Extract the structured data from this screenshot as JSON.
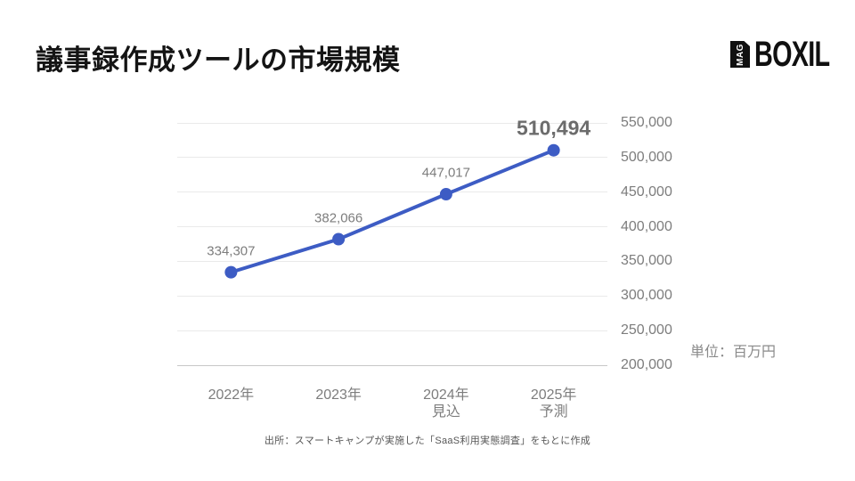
{
  "header": {
    "title": "議事録作成ツールの市場規模",
    "logo": {
      "mag": "MAG",
      "brand": "BOXIL"
    }
  },
  "unit_label": "単位：百万円",
  "source": "出所：スマートキャンプが実施した「SaaS利用実態調査」をもとに作成",
  "colors": {
    "line": "#3d5cc4",
    "grid": "#eaeaea",
    "baseline": "#c7c7c7",
    "label_gray": "#7d7d7d"
  },
  "chart_data": {
    "type": "line",
    "title": "議事録作成ツールの市場規模",
    "unit": "百万円",
    "categories": [
      [
        "2022年"
      ],
      [
        "2023年"
      ],
      [
        "2024年",
        "見込"
      ],
      [
        "2025年",
        "予測"
      ]
    ],
    "values": [
      334307,
      382066,
      447017,
      510494
    ],
    "value_labels": [
      "334,307",
      "382,066",
      "447,017",
      "510,494"
    ],
    "yticks": [
      550000,
      500000,
      450000,
      400000,
      350000,
      300000,
      250000,
      200000
    ],
    "ytick_labels": [
      "550,000",
      "500,000",
      "450,000",
      "400,000",
      "350,000",
      "300,000",
      "250,000",
      "200,000"
    ],
    "ylim": [
      200000,
      550000
    ],
    "grid": true,
    "legend": "none",
    "yaxis_side": "right",
    "emphasize_last_label": true,
    "line_color": "#3d5cc4",
    "marker_radius": 7,
    "line_width": 4
  }
}
